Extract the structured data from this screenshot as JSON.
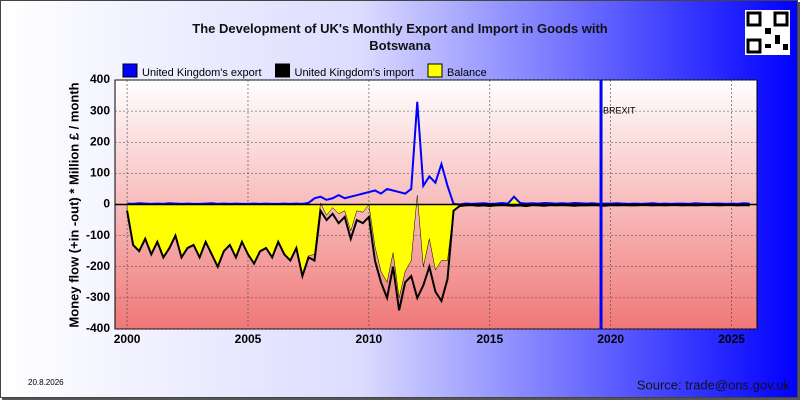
{
  "chart_data": {
    "type": "line",
    "title": "The Development of UK's Monthly Export and Import in Goods with Botswana",
    "y_label": "Money flow (+in -out) * Million £ / month",
    "date": "20.8.2026",
    "source": "Source: trade@ons.gov.uk",
    "x": [
      2000,
      2000.25,
      2000.5,
      2000.75,
      2001,
      2001.25,
      2001.5,
      2001.75,
      2002,
      2002.25,
      2002.5,
      2002.75,
      2003,
      2003.25,
      2003.5,
      2003.75,
      2004,
      2004.25,
      2004.5,
      2004.75,
      2005,
      2005.25,
      2005.5,
      2005.75,
      2006,
      2006.25,
      2006.5,
      2006.75,
      2007,
      2007.25,
      2007.5,
      2007.75,
      2008,
      2008.25,
      2008.5,
      2008.75,
      2009,
      2009.25,
      2009.5,
      2009.75,
      2010,
      2010.25,
      2010.5,
      2010.75,
      2011,
      2011.25,
      2011.5,
      2011.75,
      2012,
      2012.25,
      2012.5,
      2012.75,
      2013,
      2013.25,
      2013.5,
      2013.75,
      2014,
      2014.25,
      2014.5,
      2014.75,
      2015,
      2015.25,
      2015.5,
      2015.75,
      2016,
      2016.25,
      2016.5,
      2016.75,
      2017,
      2017.25,
      2017.5,
      2017.75,
      2018,
      2018.25,
      2018.5,
      2018.75,
      2019,
      2019.25,
      2019.5,
      2019.75,
      2020,
      2020.25,
      2020.5,
      2020.75,
      2021,
      2021.25,
      2021.5,
      2021.75,
      2022,
      2022.25,
      2022.5,
      2022.75,
      2023,
      2023.25,
      2023.5,
      2023.75,
      2024,
      2024.25,
      2024.5,
      2024.75,
      2025,
      2025.25,
      2025.5,
      2025.75
    ],
    "series": [
      {
        "name": "United Kingdom's export",
        "color": "#0000ff",
        "role": "line",
        "values": [
          3,
          2,
          4,
          3,
          2,
          3,
          2,
          4,
          3,
          2,
          3,
          2,
          2,
          3,
          4,
          2,
          3,
          2,
          3,
          2,
          2,
          3,
          2,
          3,
          2,
          2,
          3,
          2,
          3,
          2,
          5,
          20,
          25,
          15,
          20,
          30,
          20,
          25,
          30,
          35,
          40,
          45,
          35,
          50,
          45,
          40,
          35,
          50,
          330,
          60,
          90,
          70,
          130,
          60,
          2,
          0,
          3,
          2,
          3,
          4,
          2,
          3,
          5,
          3,
          25,
          5,
          3,
          4,
          3,
          5,
          4,
          3,
          4,
          3,
          5,
          4,
          3,
          4,
          2,
          3,
          3,
          4,
          3,
          2,
          3,
          2,
          3,
          4,
          2,
          3,
          2,
          3,
          3,
          2,
          4,
          3,
          2,
          3,
          3,
          2,
          3,
          2,
          4,
          3
        ]
      },
      {
        "name": "United Kingdom's import",
        "color": "#000000",
        "role": "line",
        "values": [
          -20,
          -130,
          -150,
          -110,
          -160,
          -120,
          -170,
          -140,
          -100,
          -170,
          -140,
          -130,
          -170,
          -120,
          -160,
          -200,
          -150,
          -130,
          -170,
          -120,
          -160,
          -190,
          -150,
          -140,
          -170,
          -120,
          -160,
          -180,
          -140,
          -230,
          -170,
          -180,
          -20,
          -50,
          -30,
          -60,
          -40,
          -110,
          -50,
          -60,
          -40,
          -180,
          -250,
          -300,
          -200,
          -340,
          -250,
          -230,
          -300,
          -260,
          -200,
          -280,
          -310,
          -240,
          -20,
          -5,
          -3,
          -2,
          -4,
          -3,
          -5,
          -3,
          -2,
          -3,
          -4,
          -3,
          -5,
          -2,
          -3,
          -4,
          -2,
          -3,
          -2,
          -3,
          -4,
          -3,
          -3,
          -2,
          -3,
          -4,
          -2,
          -3,
          -2,
          -3,
          -3,
          -2,
          -2,
          -3,
          -2,
          -3,
          -2,
          -2,
          -3,
          -2,
          -3,
          -2,
          -2,
          -2,
          -3,
          -2,
          -2,
          -3,
          -2,
          -3
        ]
      },
      {
        "name": "Balance",
        "color": "#ffff00",
        "role": "area",
        "values": [
          -17,
          -128,
          -146,
          -107,
          -158,
          -117,
          -168,
          -136,
          -97,
          -168,
          -137,
          -128,
          -168,
          -117,
          -156,
          -198,
          -147,
          -128,
          -167,
          -118,
          -158,
          -187,
          -148,
          -137,
          -168,
          -118,
          -157,
          -178,
          -137,
          -228,
          -165,
          -160,
          5,
          -35,
          -10,
          -30,
          -20,
          -85,
          -20,
          -25,
          0,
          -135,
          -215,
          -250,
          -155,
          -300,
          -215,
          -180,
          30,
          -200,
          -110,
          -210,
          -180,
          -180,
          -18,
          -5,
          0,
          0,
          -1,
          1,
          -3,
          0,
          3,
          0,
          21,
          2,
          -2,
          2,
          0,
          1,
          2,
          0,
          2,
          0,
          1,
          1,
          0,
          2,
          -1,
          -1,
          1,
          1,
          1,
          -1,
          0,
          0,
          1,
          1,
          0,
          0,
          0,
          1,
          0,
          0,
          1,
          1,
          0,
          1,
          0,
          0,
          1,
          -1,
          2,
          0
        ]
      }
    ],
    "annotations": [
      {
        "text": "BREXIT",
        "x": 2019.6,
        "color": "#0000ff"
      }
    ],
    "xlim": [
      1999.5,
      2026.05
    ],
    "xticks": [
      2000,
      2005,
      2010,
      2015,
      2020,
      2025
    ],
    "ylim": [
      -400,
      400
    ],
    "yticks": [
      -400,
      -300,
      -200,
      -100,
      0,
      100,
      200,
      300,
      400
    ],
    "grid": true
  }
}
